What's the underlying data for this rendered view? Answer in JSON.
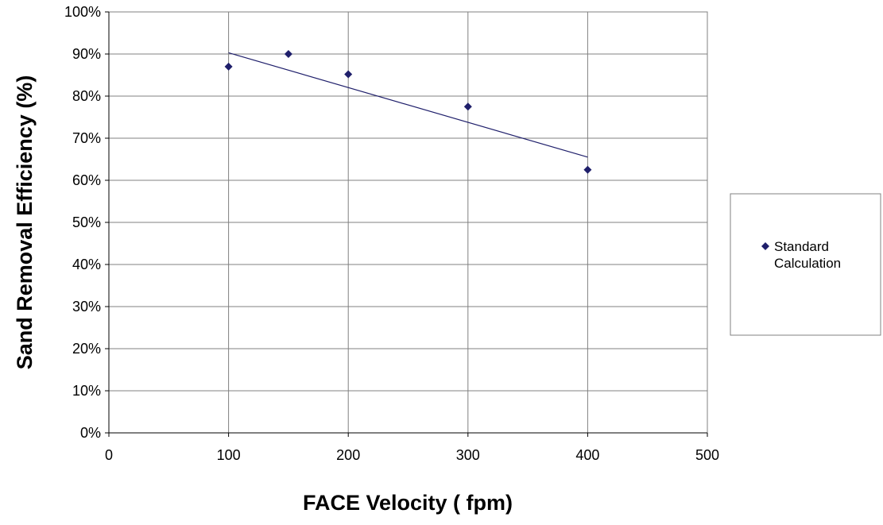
{
  "chart_data": {
    "type": "scatter",
    "title": "",
    "xlabel": "FACE Velocity ( fpm)",
    "ylabel": "Sand Removal Efficiency (%)",
    "xlim": [
      0,
      500
    ],
    "ylim": [
      0,
      1
    ],
    "x_ticks": [
      0,
      100,
      200,
      300,
      400,
      500
    ],
    "y_ticks": [
      0,
      0.1,
      0.2,
      0.3,
      0.4,
      0.5,
      0.6,
      0.7,
      0.8,
      0.9,
      1.0
    ],
    "x_tick_labels": [
      "0",
      "100",
      "200",
      "300",
      "400",
      "500"
    ],
    "y_tick_labels": [
      "0%",
      "10%",
      "20%",
      "30%",
      "40%",
      "50%",
      "60%",
      "70%",
      "80%",
      "90%",
      "100%"
    ],
    "grid": true,
    "legend_position": "right",
    "series": [
      {
        "name": "Standard Calculation",
        "marker": "diamond",
        "color": "#1f1f6b",
        "x": [
          100,
          150,
          200,
          300,
          400
        ],
        "y": [
          0.87,
          0.9,
          0.852,
          0.775,
          0.625
        ]
      }
    ],
    "trendline": {
      "type": "linear",
      "color": "#1f1f6b",
      "x": [
        100,
        400
      ],
      "y": [
        0.903,
        0.655
      ]
    }
  }
}
